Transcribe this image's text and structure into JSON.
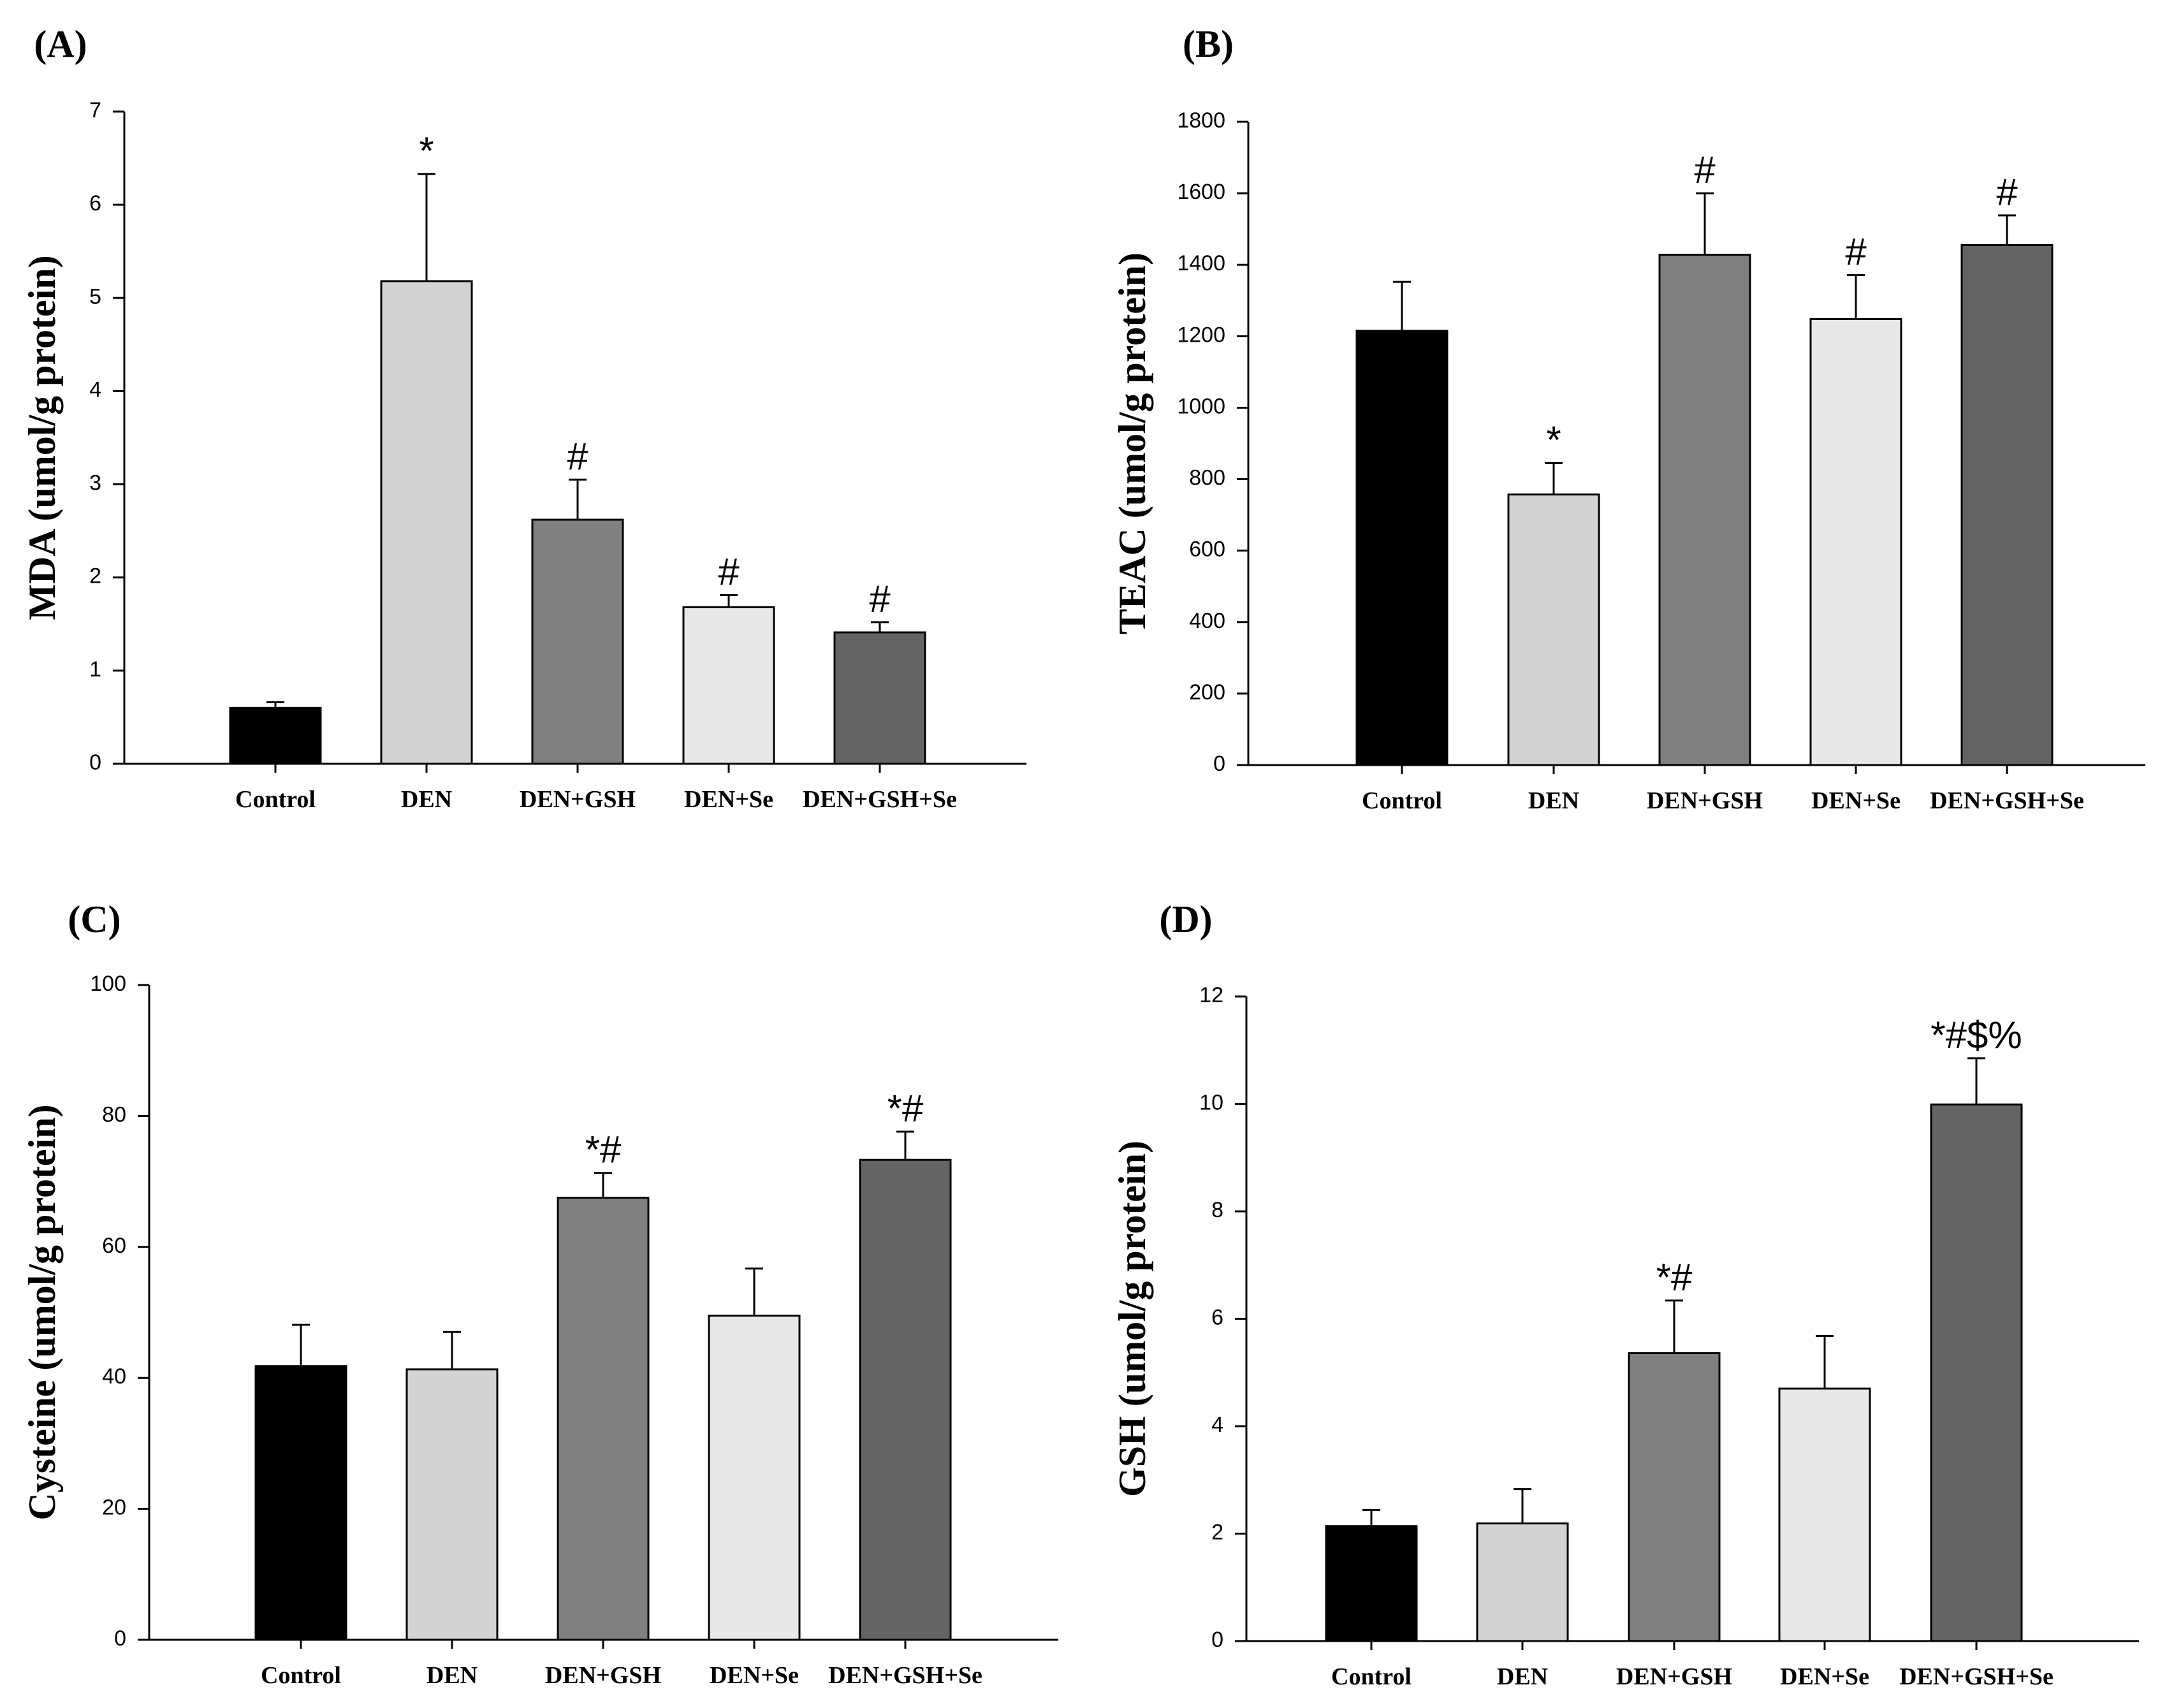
{
  "colors": {
    "Control": "#000000",
    "DEN": "#d3d3d3",
    "DEN+GSH": "#808080",
    "DEN+Se": "#e8e8e8",
    "DEN+GSH+Se": "#646464"
  },
  "chart_data": [
    {
      "panel": "(A)",
      "type": "bar",
      "categories": [
        "Control",
        "DEN",
        "DEN+GSH",
        "DEN+Se",
        "DEN+GSH+Se"
      ],
      "values": [
        0.6,
        5.18,
        2.62,
        1.68,
        1.41
      ],
      "errors": [
        0.06,
        1.15,
        0.43,
        0.13,
        0.11
      ],
      "annotations": [
        "",
        "*",
        "#",
        "#",
        "#"
      ],
      "ylabel": "MDA (umol/g protein)",
      "xlabel": "",
      "ylim": [
        0,
        7
      ],
      "yticks": [
        0,
        1,
        2,
        3,
        4,
        5,
        6,
        7
      ],
      "ytick_labels": [
        "0",
        "1",
        "2",
        "3",
        "4",
        "5",
        "6",
        "7"
      ]
    },
    {
      "panel": "(B)",
      "type": "bar",
      "categories": [
        "Control",
        "DEN",
        "DEN+GSH",
        "DEN+Se",
        "DEN+GSH+Se"
      ],
      "values": [
        1215,
        757,
        1428,
        1248,
        1455
      ],
      "errors": [
        137,
        88,
        172,
        123,
        83
      ],
      "annotations": [
        "",
        "*",
        "#",
        "#",
        "#"
      ],
      "ylabel": "TEAC (umol/g protein)",
      "xlabel": "",
      "ylim": [
        0,
        1800
      ],
      "yticks": [
        0,
        200,
        400,
        600,
        800,
        1000,
        1200,
        1400,
        1600,
        1800
      ],
      "ytick_labels": [
        "0",
        "200",
        "400",
        "600",
        "800",
        "1000",
        "1200",
        "1400",
        "1600",
        "1800"
      ]
    },
    {
      "panel": "(C)",
      "type": "bar",
      "categories": [
        "Control",
        "DEN",
        "DEN+GSH",
        "DEN+Se",
        "DEN+GSH+Se"
      ],
      "values": [
        41.8,
        41.3,
        67.5,
        49.5,
        73.3
      ],
      "errors": [
        6.3,
        5.7,
        3.8,
        7.2,
        4.3
      ],
      "annotations": [
        "",
        "",
        "*#",
        "",
        "*#"
      ],
      "ylabel": "Cysteine (umol/g protein)",
      "xlabel": "",
      "ylim": [
        0,
        100
      ],
      "yticks": [
        0,
        20,
        40,
        60,
        80,
        100
      ],
      "ytick_labels": [
        "0",
        "20",
        "40",
        "60",
        "80",
        "100"
      ]
    },
    {
      "panel": "(D)",
      "type": "bar",
      "categories": [
        "Control",
        "DEN",
        "DEN+GSH",
        "DEN+Se",
        "DEN+GSH+Se"
      ],
      "values": [
        2.14,
        2.19,
        5.36,
        4.7,
        9.99
      ],
      "errors": [
        0.3,
        0.64,
        0.98,
        0.98,
        0.86
      ],
      "annotations": [
        "",
        "",
        "*#",
        "",
        "*#$%"
      ],
      "ylabel": "GSH (umol/g protein)",
      "xlabel": "",
      "ylim": [
        0,
        12
      ],
      "yticks": [
        0,
        2,
        4,
        6,
        8,
        10,
        12
      ],
      "ytick_labels": [
        "0",
        "2",
        "4",
        "6",
        "8",
        "10",
        "12"
      ]
    }
  ]
}
